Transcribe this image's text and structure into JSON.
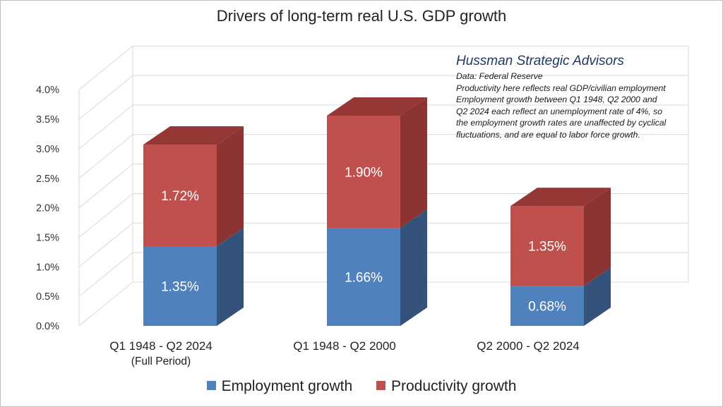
{
  "chart_data": {
    "type": "bar",
    "stacked": true,
    "title": "Drivers of long-term real U.S. GDP growth",
    "categories": [
      "Q1 1948 - Q2 2024\n(Full Period)",
      "Q1 1948 - Q2 2000",
      "Q2 2000 - Q2 2024"
    ],
    "series": [
      {
        "name": "Employment growth",
        "values": [
          1.35,
          1.66,
          0.68
        ],
        "labels": [
          "1.35%",
          "1.66%",
          "0.68%"
        ]
      },
      {
        "name": "Productivity growth",
        "values": [
          1.72,
          1.9,
          1.35
        ],
        "labels": [
          "1.72%",
          "1.90%",
          "1.35%"
        ]
      }
    ],
    "y_ticks": [
      "0.0%",
      "0.5%",
      "1.0%",
      "1.5%",
      "2.0%",
      "2.5%",
      "3.0%",
      "3.5%",
      "4.0%"
    ],
    "ylim": [
      0,
      4.0
    ],
    "grid": true,
    "legend_position": "bottom",
    "colors": {
      "employment_front": "#4f81bd",
      "employment_side": "#34527a",
      "productivity_front": "#c0504d",
      "productivity_side": "#8b3432",
      "productivity_top": "#953735",
      "grid": "#d9d9d9"
    }
  },
  "annotation": {
    "source": "Hussman Strategic Advisors",
    "lines": [
      "Data: Federal Reserve",
      "Productivity here reflects real GDP/civilian employment",
      "Employment growth between Q1 1948, Q2 2000 and",
      "Q2 2024 each reflect an unemployment rate of 4%, so",
      "the employment growth rates are unaffected by cyclical",
      "fluctuations, and are equal to labor force growth."
    ]
  }
}
